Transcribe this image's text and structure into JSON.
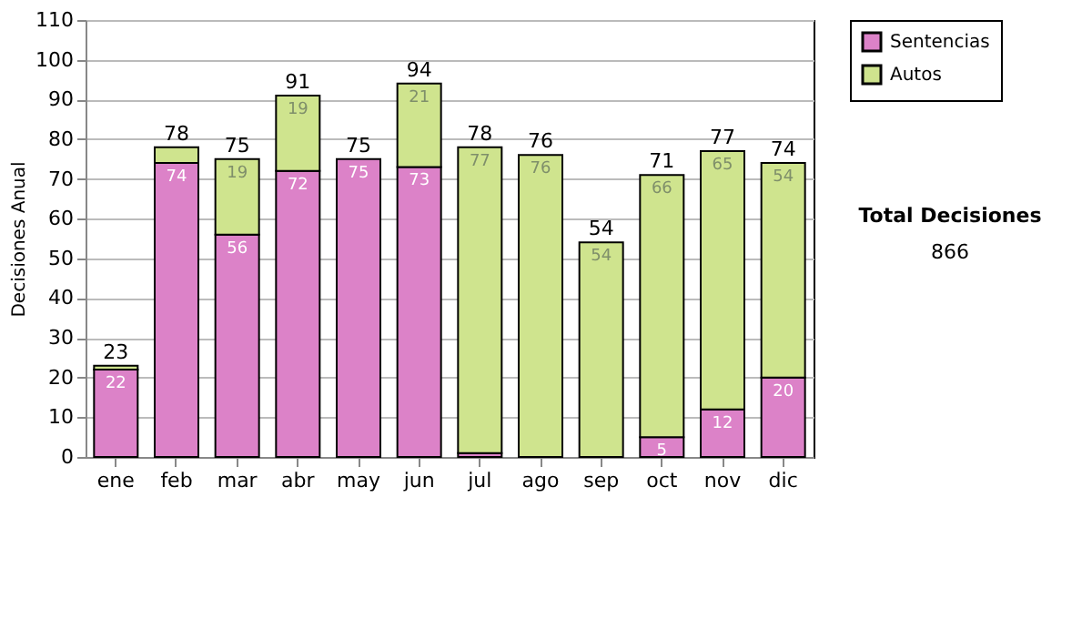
{
  "chart_data": {
    "type": "bar",
    "stacked": true,
    "ylabel": "Decisiones Anual",
    "categories": [
      "ene",
      "feb",
      "mar",
      "abr",
      "may",
      "jun",
      "jul",
      "ago",
      "sep",
      "oct",
      "nov",
      "dic"
    ],
    "series": [
      {
        "name": "Sentencias",
        "color": "#dc82c8",
        "values": [
          22,
          74,
          56,
          72,
          75,
          73,
          1,
          0,
          0,
          5,
          12,
          20
        ],
        "value_labels": [
          "22",
          "74",
          "56",
          "72",
          "75",
          "73",
          null,
          null,
          null,
          "5",
          "12",
          "20"
        ]
      },
      {
        "name": "Autos",
        "color": "#cfe48e",
        "values": [
          1,
          4,
          19,
          19,
          0,
          21,
          77,
          76,
          54,
          66,
          65,
          54
        ],
        "value_labels": [
          null,
          null,
          "19",
          "19",
          null,
          "21",
          "77",
          "76",
          "54",
          "66",
          "65",
          "54"
        ]
      }
    ],
    "totals": [
      "23",
      "78",
      "75",
      "91",
      "75",
      "94",
      "78",
      "76",
      "54",
      "71",
      "77",
      "74"
    ],
    "ylim": [
      0,
      110
    ],
    "yticks": [
      0,
      10,
      20,
      30,
      40,
      50,
      60,
      70,
      80,
      90,
      100,
      110
    ],
    "grid": "y",
    "legend": "right",
    "annotations": [
      "Total Decisiones",
      "866"
    ]
  }
}
